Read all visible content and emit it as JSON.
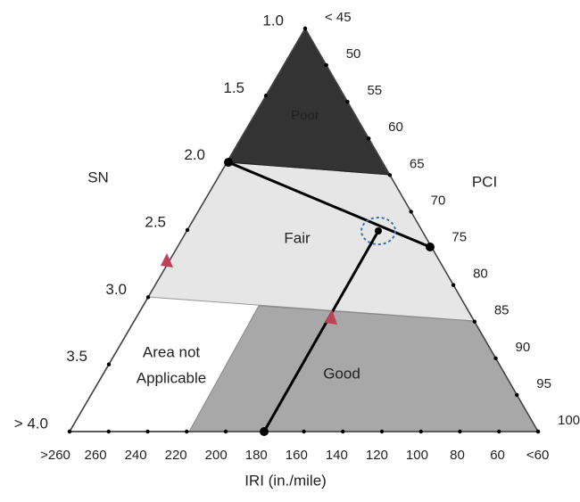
{
  "axes": {
    "sn": {
      "title": "SN",
      "labels": [
        "1.0",
        "1.5",
        "2.0",
        "2.5",
        "3.0",
        "3.5",
        "> 4.0"
      ]
    },
    "pci": {
      "title": "PCI",
      "labels": [
        "< 45",
        "50",
        "55",
        "60",
        "65",
        "70",
        "75",
        "80",
        "85",
        "90",
        "95",
        "100"
      ]
    },
    "iri": {
      "title": "IRI (in./mile)",
      "labels": [
        ">260",
        "260",
        "240",
        "220",
        "200",
        "180",
        "160",
        "140",
        "120",
        "100",
        "80",
        "60",
        "<60"
      ]
    }
  },
  "regions": {
    "poor": "Poor",
    "fair": "Fair",
    "good": "Good",
    "not_applicable": [
      "Area not",
      "Applicable"
    ]
  }
}
